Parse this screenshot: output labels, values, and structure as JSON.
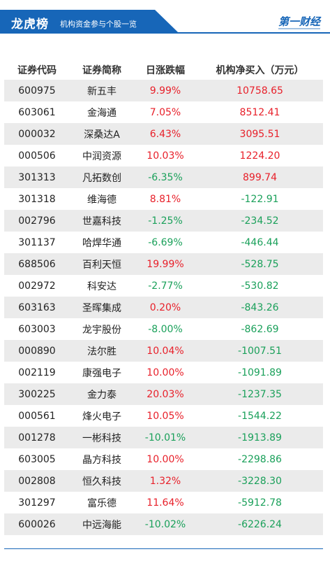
{
  "header": {
    "title": "龙虎榜",
    "subtitle": "机构资金参与个股一览",
    "logo": "第一财经"
  },
  "table": {
    "columns": [
      "证券代码",
      "证券简称",
      "日涨跌幅",
      "机构净买入（万元）"
    ],
    "rows": [
      {
        "code": "600975",
        "name": "新五丰",
        "change": "9.99%",
        "net": "10758.65"
      },
      {
        "code": "603061",
        "name": "金海通",
        "change": "7.05%",
        "net": "8512.41"
      },
      {
        "code": "000032",
        "name": "深桑达A",
        "change": "6.43%",
        "net": "3095.51"
      },
      {
        "code": "000506",
        "name": "中润资源",
        "change": "10.03%",
        "net": "1224.20"
      },
      {
        "code": "301313",
        "name": "凡拓数创",
        "change": "-6.35%",
        "net": "899.74"
      },
      {
        "code": "301318",
        "name": "维海德",
        "change": "8.81%",
        "net": "-122.91"
      },
      {
        "code": "002796",
        "name": "世嘉科技",
        "change": "-1.25%",
        "net": "-234.52"
      },
      {
        "code": "301137",
        "name": "哈焊华通",
        "change": "-6.69%",
        "net": "-446.44"
      },
      {
        "code": "688506",
        "name": "百利天恒",
        "change": "19.99%",
        "net": "-528.75"
      },
      {
        "code": "002972",
        "name": "科安达",
        "change": "-2.77%",
        "net": "-530.82"
      },
      {
        "code": "603163",
        "name": "圣晖集成",
        "change": "0.20%",
        "net": "-843.26"
      },
      {
        "code": "603003",
        "name": "龙宇股份",
        "change": "-8.00%",
        "net": "-862.69"
      },
      {
        "code": "000890",
        "name": "法尔胜",
        "change": "10.04%",
        "net": "-1007.51"
      },
      {
        "code": "002119",
        "name": "康强电子",
        "change": "10.00%",
        "net": "-1091.89"
      },
      {
        "code": "300225",
        "name": "金力泰",
        "change": "20.03%",
        "net": "-1237.35"
      },
      {
        "code": "000561",
        "name": "烽火电子",
        "change": "10.05%",
        "net": "-1544.22"
      },
      {
        "code": "001278",
        "name": "一彬科技",
        "change": "-10.01%",
        "net": "-1913.89"
      },
      {
        "code": "603005",
        "name": "晶方科技",
        "change": "10.00%",
        "net": "-2298.86"
      },
      {
        "code": "002808",
        "name": "恒久科技",
        "change": "1.32%",
        "net": "-3228.30"
      },
      {
        "code": "301297",
        "name": "富乐德",
        "change": "11.64%",
        "net": "-5912.78"
      },
      {
        "code": "600026",
        "name": "中远海能",
        "change": "-10.02%",
        "net": "-6226.24"
      }
    ]
  },
  "colors": {
    "accent": "#1766b8",
    "up": "#e8202a",
    "down": "#1aa05a",
    "stripe": "#ebebeb"
  }
}
